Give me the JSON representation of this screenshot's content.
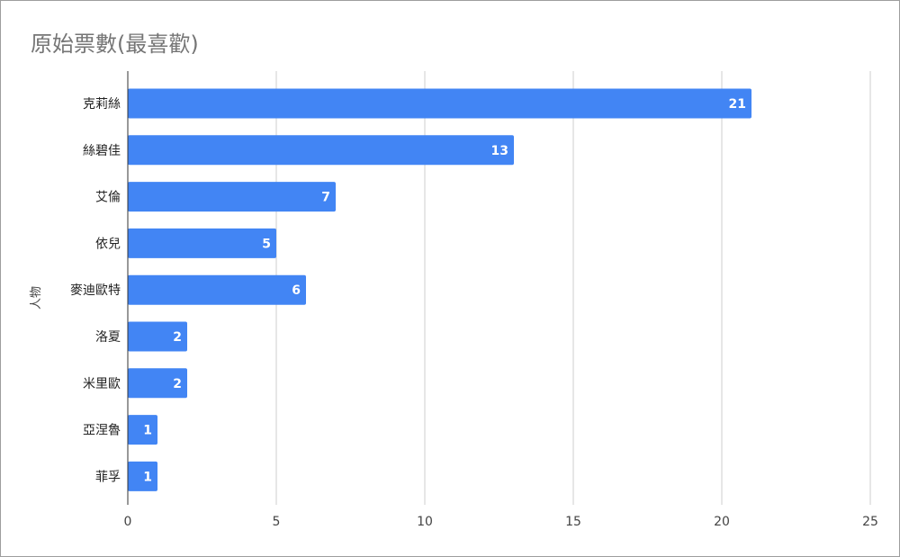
{
  "chart_data": {
    "type": "bar",
    "orientation": "horizontal",
    "title": "原始票數(最喜歡)",
    "ylabel": "人物",
    "xlabel": "",
    "categories": [
      "克莉絲",
      "絲碧佳",
      "艾倫",
      "依兒",
      "麥迪歐特",
      "洛夏",
      "米里歐",
      "亞涅魯",
      "菲孚"
    ],
    "values": [
      21,
      13,
      7,
      5,
      6,
      2,
      2,
      1,
      1
    ],
    "xlim": [
      0,
      25
    ],
    "xticks": [
      "0",
      "5",
      "10",
      "15",
      "20",
      "25"
    ],
    "grid": true,
    "legend": "none",
    "bar_color": "#4285f4",
    "data_labels": true
  }
}
